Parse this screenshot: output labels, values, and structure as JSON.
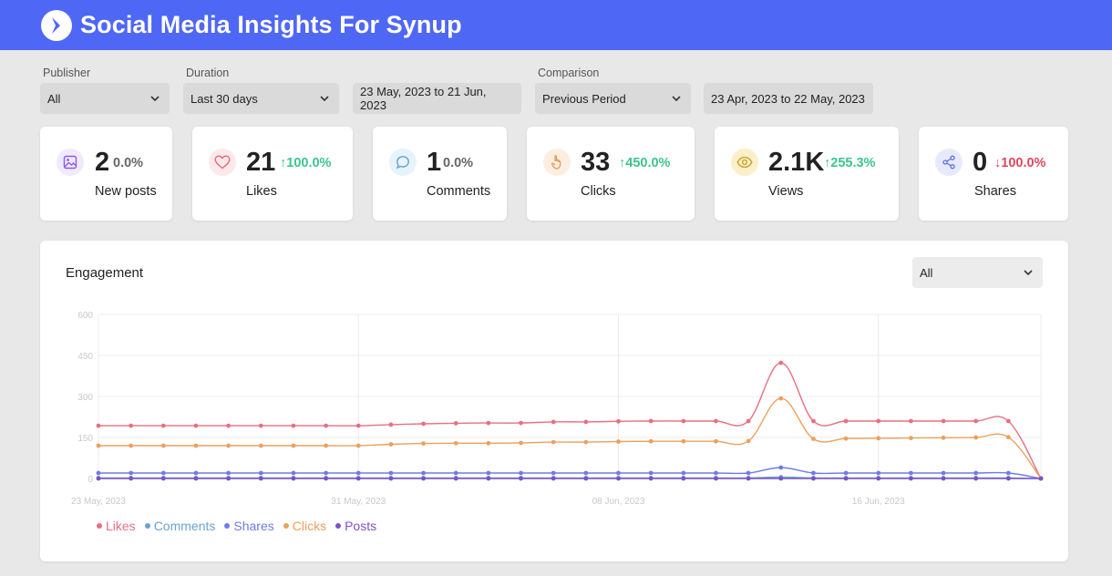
{
  "header": {
    "title": "Social Media Insights For Synup",
    "logo_icon": "synup-logo-icon"
  },
  "filters": {
    "publisher": {
      "label": "Publisher",
      "value": "All"
    },
    "duration": {
      "label": "Duration",
      "value": "Last 30 days"
    },
    "date_range": "23 May, 2023 to 21 Jun, 2023",
    "comparison": {
      "label": "Comparison",
      "value": "Previous Period"
    },
    "comparison_range": "23 Apr, 2023 to 22 May, 2023"
  },
  "cards": [
    {
      "icon": "image-icon",
      "value": "2",
      "change": "0.0%",
      "direction": "none",
      "label": "New posts",
      "color": "#8b5cf6"
    },
    {
      "icon": "heart-icon",
      "value": "21",
      "change": "100.0%",
      "direction": "up",
      "label": "Likes",
      "color": "#e26a7b"
    },
    {
      "icon": "comment-icon",
      "value": "1",
      "change": "0.0%",
      "direction": "none",
      "label": "Comments",
      "color": "#60a5c8"
    },
    {
      "icon": "pointer-icon",
      "value": "33",
      "change": "450.0%",
      "direction": "up",
      "label": "Clicks",
      "color": "#e8964f"
    },
    {
      "icon": "eye-icon",
      "value": "2.1K",
      "change": "255.3%",
      "direction": "up",
      "label": "Views",
      "color": "#c9a227"
    },
    {
      "icon": "share-icon",
      "value": "0",
      "change": "100.0%",
      "direction": "down",
      "label": "Shares",
      "color": "#5f6fe0"
    }
  ],
  "colors": {
    "accent": "#4f67f5",
    "up": "#3cc48d",
    "down": "#e0475c",
    "neutral": "#666666"
  },
  "engagement": {
    "title": "Engagement",
    "filter_value": "All"
  },
  "chart_data": {
    "type": "line",
    "x": [
      "23 May, 2023",
      "24 May, 2023",
      "25 May, 2023",
      "26 May, 2023",
      "27 May, 2023",
      "28 May, 2023",
      "29 May, 2023",
      "30 May, 2023",
      "31 May, 2023",
      "01 Jun, 2023",
      "02 Jun, 2023",
      "03 Jun, 2023",
      "04 Jun, 2023",
      "05 Jun, 2023",
      "06 Jun, 2023",
      "07 Jun, 2023",
      "08 Jun, 2023",
      "09 Jun, 2023",
      "10 Jun, 2023",
      "11 Jun, 2023",
      "12 Jun, 2023",
      "13 Jun, 2023",
      "14 Jun, 2023",
      "15 Jun, 2023",
      "16 Jun, 2023",
      "17 Jun, 2023",
      "18 Jun, 2023",
      "19 Jun, 2023",
      "20 Jun, 2023",
      "21 Jun, 2023"
    ],
    "x_tick_labels": [
      "23 May, 2023",
      "31 May, 2023",
      "08 Jun, 2023",
      "16 Jun, 2023"
    ],
    "ylim": [
      0,
      600
    ],
    "y_ticks": [
      0,
      150,
      300,
      450,
      600
    ],
    "grid": true,
    "legend_position": "bottom-left",
    "series": [
      {
        "name": "Likes",
        "color": "#e86f82",
        "values": [
          193,
          193,
          193,
          193,
          193,
          193,
          193,
          193,
          193,
          197,
          200,
          202,
          203,
          203,
          207,
          207,
          209,
          210,
          210,
          210,
          210,
          423,
          210,
          210,
          210,
          210,
          210,
          210,
          210,
          0
        ]
      },
      {
        "name": "Comments",
        "color": "#6ba3d0",
        "values": [
          2,
          2,
          2,
          2,
          2,
          2,
          2,
          2,
          2,
          2,
          2,
          2,
          2,
          2,
          2,
          2,
          2,
          2,
          2,
          2,
          2,
          5,
          2,
          2,
          2,
          2,
          2,
          2,
          2,
          0
        ]
      },
      {
        "name": "Shares",
        "color": "#6e7ce8",
        "values": [
          20,
          20,
          20,
          20,
          20,
          20,
          20,
          20,
          20,
          20,
          20,
          20,
          20,
          20,
          20,
          20,
          20,
          20,
          20,
          20,
          20,
          40,
          20,
          20,
          20,
          20,
          20,
          20,
          20,
          0
        ]
      },
      {
        "name": "Clicks",
        "color": "#eda05c",
        "values": [
          120,
          120,
          120,
          120,
          120,
          120,
          120,
          120,
          120,
          125,
          128,
          129,
          129,
          130,
          133,
          133,
          135,
          136,
          136,
          136,
          137,
          293,
          145,
          146,
          147,
          148,
          149,
          150,
          151,
          0
        ]
      },
      {
        "name": "Posts",
        "color": "#7c52c7",
        "values": [
          0,
          0,
          0,
          0,
          0,
          0,
          0,
          0,
          0,
          0,
          0,
          0,
          0,
          0,
          0,
          0,
          0,
          0,
          0,
          0,
          0,
          0,
          0,
          0,
          0,
          0,
          0,
          0,
          0,
          0
        ]
      }
    ]
  }
}
